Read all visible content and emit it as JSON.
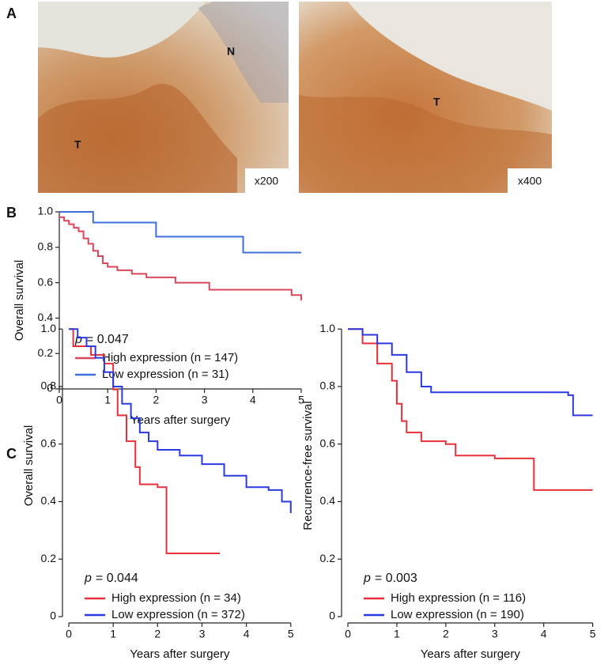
{
  "figure": {
    "panel_labels": [
      "A",
      "B",
      "C"
    ],
    "images": [
      {
        "labels": [
          "N",
          "T"
        ],
        "magnification": "x200"
      },
      {
        "labels": [
          "T"
        ],
        "magnification": "x400"
      }
    ]
  },
  "chart_data": [
    {
      "type": "line",
      "step": true,
      "xlabel": "Years after surgery",
      "ylabel": "Overall survival",
      "p_label": "p",
      "p_value": "= 0.047",
      "legend": "lower left",
      "xlim": [
        0,
        5
      ],
      "xticks": [
        0,
        1,
        2,
        3,
        4,
        5
      ],
      "ylim": [
        0,
        1
      ],
      "yticks": [
        0,
        0.2,
        0.4,
        0.6,
        0.8,
        {
          "value": 1,
          "label": "1.0"
        }
      ],
      "series": [
        {
          "name": "High expression (n = 147)",
          "color": "#d9475a",
          "x": [
            0,
            0.1,
            0.2,
            0.3,
            0.4,
            0.5,
            0.6,
            0.7,
            0.8,
            0.9,
            1.0,
            1.2,
            1.5,
            1.8,
            2.4,
            3.1,
            4.8,
            5
          ],
          "values": [
            0.97,
            0.95,
            0.93,
            0.91,
            0.89,
            0.85,
            0.82,
            0.78,
            0.75,
            0.71,
            0.69,
            0.67,
            0.65,
            0.63,
            0.6,
            0.56,
            0.53,
            0.5
          ]
        },
        {
          "name": "Low expression (n = 31)",
          "color": "#3f6fd8",
          "x": [
            0,
            0.7,
            2.0,
            3.8,
            5
          ],
          "values": [
            1.0,
            0.94,
            0.86,
            0.77,
            0.77
          ]
        }
      ]
    },
    {
      "type": "line",
      "step": true,
      "xlabel": "Years after surgery",
      "ylabel": "Overall survival",
      "p_label": "p",
      "p_value": "= 0.044",
      "legend": "lower left",
      "xlim": [
        0,
        5.2
      ],
      "xticks": [
        0,
        1,
        2,
        3,
        4,
        5
      ],
      "ylim": [
        0,
        1.05
      ],
      "yticks": [
        0,
        0.2,
        0.4,
        0.6,
        0.8,
        {
          "value": 1,
          "label": "1.0"
        }
      ],
      "series": [
        {
          "name": "High expression (n = 34)",
          "color": "#e8303a",
          "x": [
            0,
            0.1,
            0.5,
            0.8,
            1.0,
            1.1,
            1.3,
            1.5,
            1.6,
            2.0,
            2.2,
            3.4
          ],
          "values": [
            1.0,
            0.94,
            0.91,
            0.88,
            0.79,
            0.7,
            0.61,
            0.52,
            0.46,
            0.45,
            0.22,
            0.22
          ]
        },
        {
          "name": "Low expression (n = 372)",
          "color": "#2a3ae0",
          "x": [
            0,
            0.2,
            0.4,
            0.6,
            0.8,
            1.0,
            1.2,
            1.4,
            1.6,
            1.8,
            2.0,
            2.5,
            3.0,
            3.5,
            4.0,
            4.5,
            4.8,
            5.0
          ],
          "values": [
            1.0,
            0.97,
            0.94,
            0.9,
            0.85,
            0.8,
            0.74,
            0.69,
            0.64,
            0.61,
            0.58,
            0.56,
            0.53,
            0.49,
            0.45,
            0.44,
            0.4,
            0.36
          ]
        }
      ]
    },
    {
      "type": "line",
      "step": true,
      "xlabel": "Years after surgery",
      "ylabel": "Recurrence-free survival",
      "p_label": "p",
      "p_value": "= 0.003",
      "legend": "lower left",
      "xlim": [
        0,
        5.2
      ],
      "xticks": [
        0,
        1,
        2,
        3,
        4,
        5
      ],
      "ylim": [
        0,
        1.05
      ],
      "yticks": [
        0,
        0.2,
        0.4,
        0.6,
        0.8,
        {
          "value": 1,
          "label": "1.0"
        }
      ],
      "series": [
        {
          "name": "High expression (n = 116)",
          "color": "#e8303a",
          "x": [
            0,
            0.3,
            0.6,
            0.9,
            1.0,
            1.1,
            1.2,
            1.5,
            2.0,
            2.2,
            3.0,
            3.8,
            5.0
          ],
          "values": [
            1.0,
            0.95,
            0.88,
            0.82,
            0.74,
            0.68,
            0.64,
            0.61,
            0.6,
            0.56,
            0.55,
            0.44,
            0.44
          ]
        },
        {
          "name": "Low expression (n = 190)",
          "color": "#2a3ae0",
          "x": [
            0,
            0.3,
            0.6,
            0.9,
            1.2,
            1.5,
            1.7,
            2.5,
            3.5,
            4.5,
            4.6,
            5.0
          ],
          "values": [
            1.0,
            0.98,
            0.95,
            0.91,
            0.85,
            0.8,
            0.78,
            0.78,
            0.78,
            0.77,
            0.7,
            0.7
          ]
        }
      ]
    }
  ]
}
